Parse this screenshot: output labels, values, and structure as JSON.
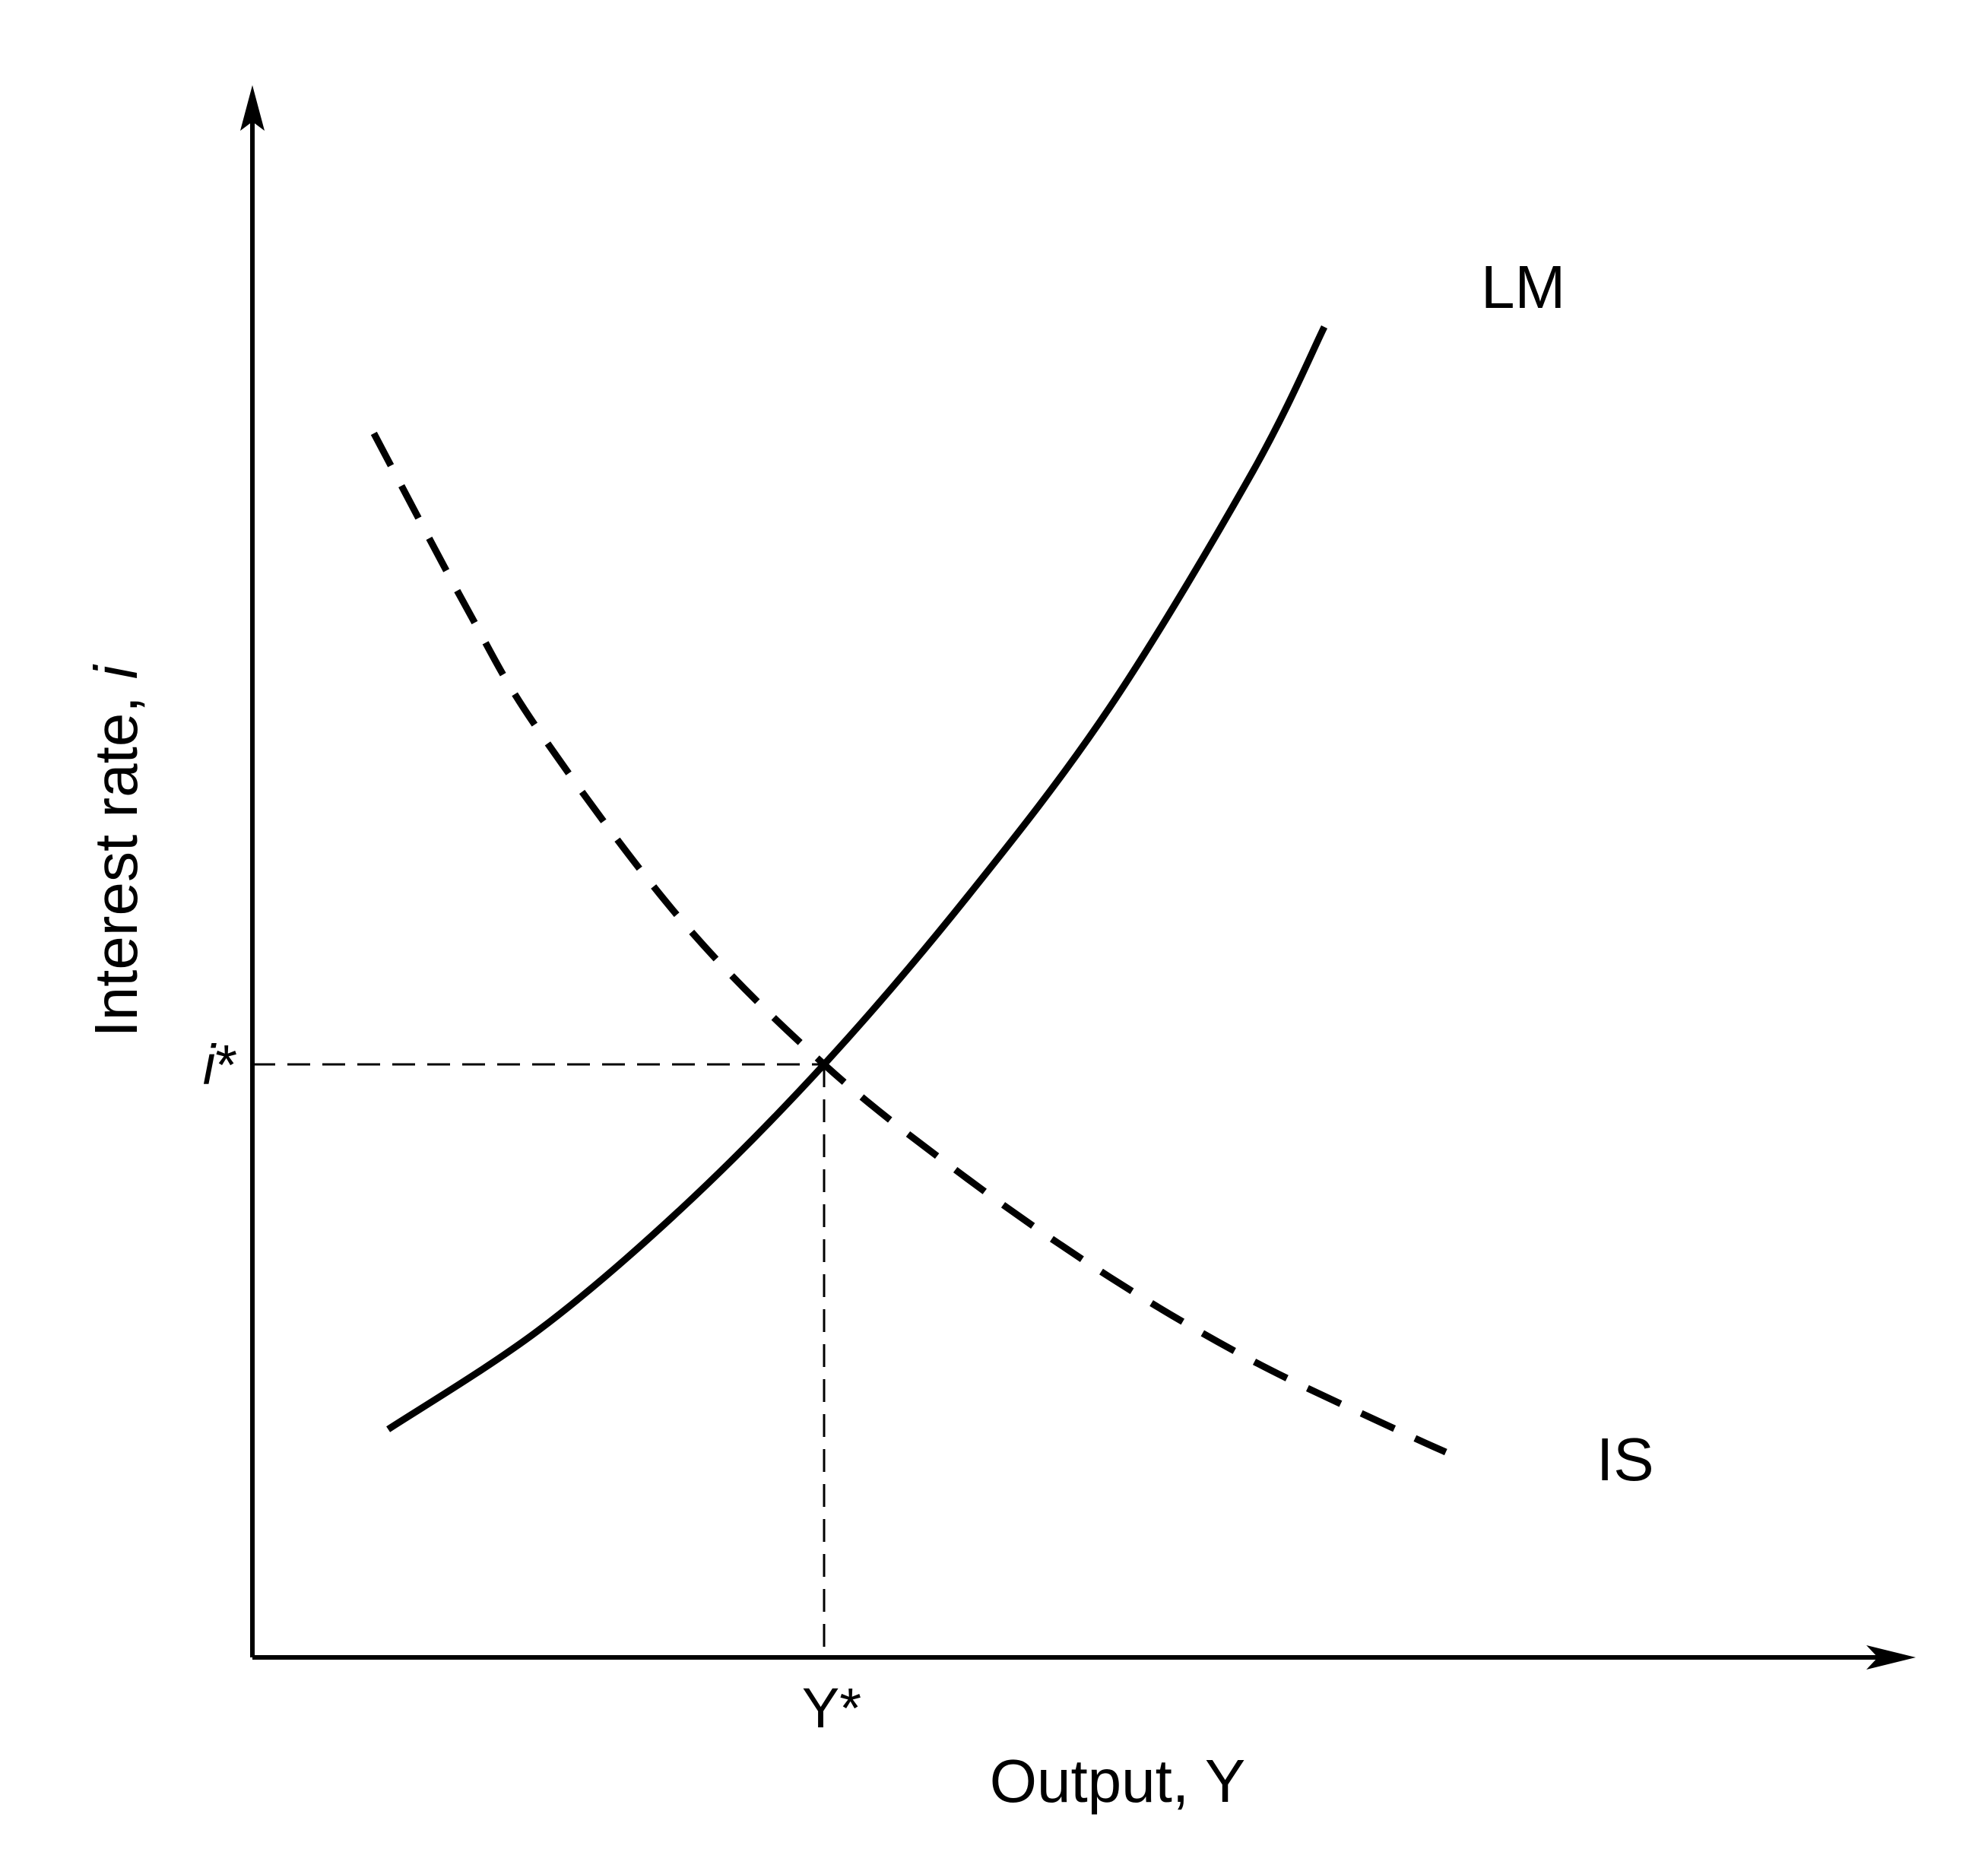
{
  "colors": {
    "ink": "#000000",
    "background": "#ffffff"
  },
  "chart_data": {
    "type": "line",
    "title": "",
    "xlabel": "Output, Y",
    "ylabel": "Interest rate, ",
    "ylabel_italic": "i",
    "xlim": [
      0,
      10
    ],
    "ylim": [
      0,
      10
    ],
    "grid": false,
    "legend": "none",
    "ticks": {
      "x": {
        "value": 4,
        "label": "Y*"
      },
      "y": {
        "value": 3.9,
        "label_italic": "i",
        "label_star": "*"
      }
    },
    "series": [
      {
        "name": "LM",
        "style": "solid",
        "x": [
          0.95,
          2.0,
          3.0,
          4.0,
          5.0,
          6.0,
          7.0,
          7.5
        ],
        "y": [
          1.5,
          2.15,
          2.95,
          3.9,
          5.0,
          6.25,
          7.8,
          8.75
        ]
      },
      {
        "name": "IS",
        "style": "dashed",
        "x": [
          0.85,
          1.5,
          2.0,
          3.0,
          4.0,
          5.0,
          6.0,
          7.0,
          8.0,
          8.35
        ],
        "y": [
          8.05,
          6.9,
          6.1,
          4.85,
          3.9,
          3.15,
          2.5,
          1.95,
          1.5,
          1.35
        ]
      }
    ],
    "guides": [
      {
        "type": "dashed-projection",
        "x": 4,
        "y": 3.9
      }
    ]
  }
}
